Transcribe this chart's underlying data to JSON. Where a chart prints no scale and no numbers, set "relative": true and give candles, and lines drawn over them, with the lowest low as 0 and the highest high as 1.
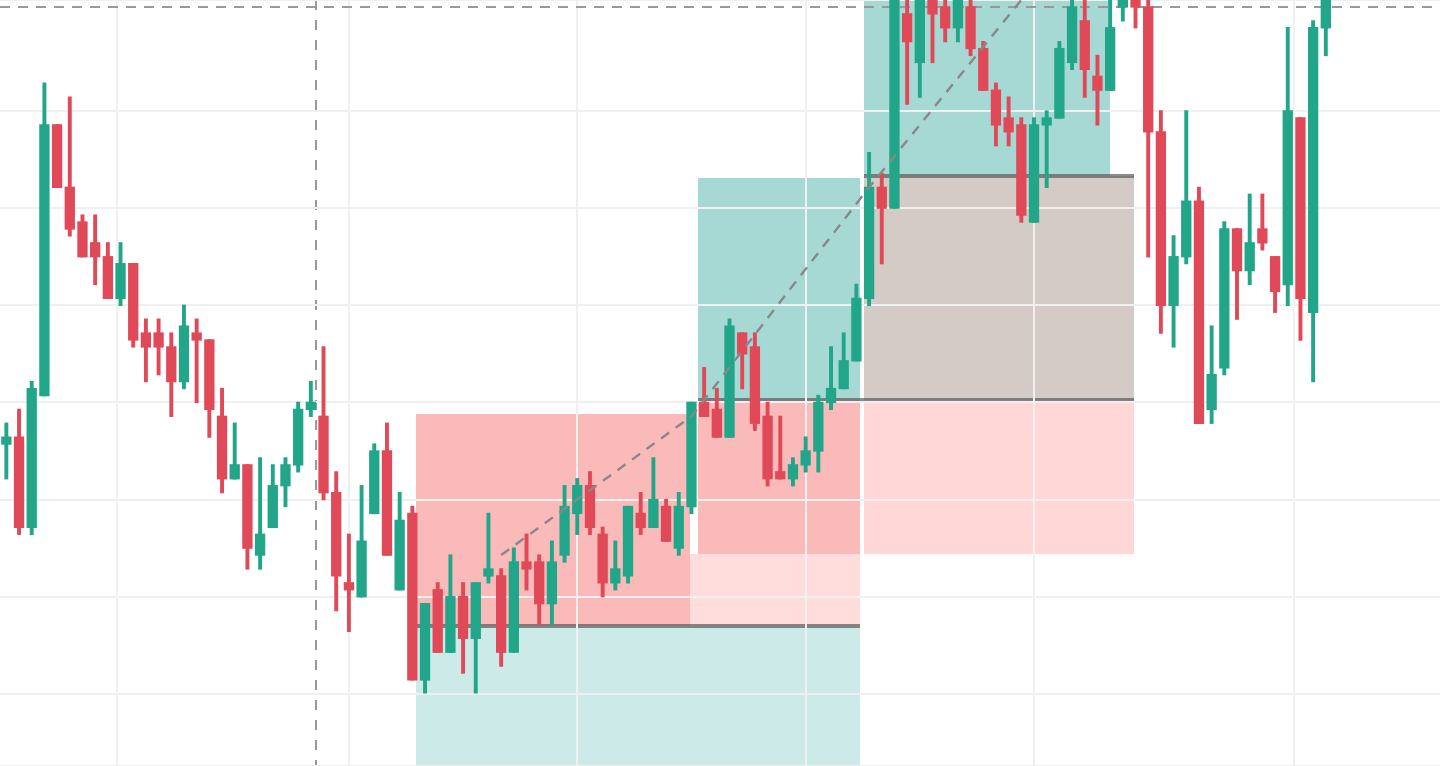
{
  "chart_data": {
    "type": "candlestick",
    "relative": true,
    "grid": true,
    "ref_lines": [
      {
        "axis": "y",
        "value": 0.99,
        "color": "#999999",
        "line_style": "dashed"
      }
    ],
    "series": [
      {
        "type": "line",
        "color": "#888888",
        "line_style": "dashed",
        "values": [
          null,
          null,
          null,
          null,
          null,
          null,
          null,
          null,
          null,
          null,
          null,
          null,
          null,
          null,
          null,
          null,
          null,
          null,
          null,
          null,
          null,
          null,
          null,
          null,
          null,
          null,
          null,
          null,
          null,
          null,
          null,
          null,
          null,
          null,
          null,
          null,
          null,
          null,
          null,
          0.2,
          null,
          null,
          null,
          null,
          null,
          null,
          null,
          null,
          null,
          null,
          null,
          null,
          null,
          null,
          0.4,
          null,
          null,
          null,
          null,
          null,
          null,
          null,
          null,
          null,
          null,
          null,
          null,
          null,
          0.73,
          null,
          null,
          null,
          null,
          null,
          null,
          null,
          null,
          null,
          null,
          null,
          1.0,
          null,
          null,
          null,
          null,
          null,
          null,
          null,
          null,
          null,
          null,
          null,
          null,
          null,
          null,
          null,
          null,
          null,
          null,
          null,
          null,
          null,
          null,
          null,
          null
        ]
      }
    ],
    "categories": [
      null,
      null,
      null,
      null,
      null,
      null,
      null,
      null,
      null,
      null,
      null,
      null,
      null,
      null,
      null,
      null,
      null,
      null,
      null,
      null,
      null,
      null,
      null,
      null,
      null,
      null,
      null,
      null,
      null,
      null,
      null,
      null,
      null,
      null,
      null,
      null,
      null,
      null,
      null,
      null,
      null,
      null,
      null,
      null,
      null,
      null,
      null,
      null,
      null,
      null,
      null,
      null,
      null,
      null,
      null,
      null,
      null,
      null,
      null,
      null,
      null,
      null,
      null,
      null,
      null,
      null,
      null,
      null,
      null,
      null,
      null,
      null,
      null,
      null,
      null,
      null,
      null,
      null,
      null,
      null,
      null,
      null,
      null,
      null,
      null,
      null,
      null,
      null,
      null,
      null,
      null,
      null,
      null,
      null,
      null,
      null,
      null,
      null,
      null,
      null,
      null,
      null,
      null,
      null,
      null
    ],
    "ohlc": [
      [
        0.36,
        0.39,
        0.31,
        0.37
      ],
      [
        0.37,
        0.41,
        0.23,
        0.24
      ],
      [
        0.24,
        0.45,
        0.23,
        0.44
      ],
      [
        0.43,
        0.88,
        0.43,
        0.82
      ],
      [
        0.82,
        0.82,
        0.73,
        0.73
      ],
      [
        0.73,
        0.86,
        0.66,
        0.67
      ],
      [
        0.68,
        0.69,
        0.63,
        0.63
      ],
      [
        0.65,
        0.69,
        0.59,
        0.63
      ],
      [
        0.63,
        0.65,
        0.57,
        0.57
      ],
      [
        0.57,
        0.65,
        0.56,
        0.62
      ],
      [
        0.62,
        0.62,
        0.5,
        0.51
      ],
      [
        0.52,
        0.54,
        0.45,
        0.5
      ],
      [
        0.52,
        0.54,
        0.46,
        0.5
      ],
      [
        0.5,
        0.52,
        0.4,
        0.45
      ],
      [
        0.45,
        0.56,
        0.44,
        0.53
      ],
      [
        0.52,
        0.54,
        0.42,
        0.51
      ],
      [
        0.51,
        0.51,
        0.37,
        0.41
      ],
      [
        0.4,
        0.44,
        0.29,
        0.31
      ],
      [
        0.31,
        0.39,
        0.31,
        0.33
      ],
      [
        0.33,
        0.33,
        0.18,
        0.21
      ],
      [
        0.2,
        0.34,
        0.18,
        0.23
      ],
      [
        0.24,
        0.33,
        0.24,
        0.3
      ],
      [
        0.3,
        0.34,
        0.27,
        0.33
      ],
      [
        0.33,
        0.42,
        0.32,
        0.41
      ],
      [
        0.41,
        0.45,
        0.4,
        0.42
      ],
      [
        0.4,
        0.5,
        0.28,
        0.29
      ],
      [
        0.29,
        0.32,
        0.12,
        0.17
      ],
      [
        0.16,
        0.23,
        0.09,
        0.15
      ],
      [
        0.14,
        0.3,
        0.14,
        0.22
      ],
      [
        0.26,
        0.36,
        0.26,
        0.35
      ],
      [
        0.35,
        0.39,
        0.2,
        0.2
      ],
      [
        0.15,
        0.29,
        0.15,
        0.25
      ],
      [
        0.26,
        0.27,
        0.02,
        0.02
      ],
      [
        0.02,
        0.13,
        0.0,
        0.13
      ],
      [
        0.15,
        0.16,
        0.06,
        0.06
      ],
      [
        0.06,
        0.2,
        0.06,
        0.14
      ],
      [
        0.14,
        0.16,
        0.03,
        0.08
      ],
      [
        0.08,
        0.16,
        0.0,
        0.16
      ],
      [
        0.17,
        0.26,
        0.16,
        0.18
      ],
      [
        0.17,
        0.18,
        0.04,
        0.06
      ],
      [
        0.06,
        0.21,
        0.06,
        0.19
      ],
      [
        0.19,
        0.23,
        0.15,
        0.18
      ],
      [
        0.19,
        0.2,
        0.1,
        0.13
      ],
      [
        0.13,
        0.22,
        0.1,
        0.19
      ],
      [
        0.2,
        0.3,
        0.19,
        0.27
      ],
      [
        0.26,
        0.31,
        0.23,
        0.3
      ],
      [
        0.3,
        0.32,
        0.23,
        0.24
      ],
      [
        0.23,
        0.24,
        0.14,
        0.16
      ],
      [
        0.16,
        0.22,
        0.15,
        0.18
      ],
      [
        0.17,
        0.27,
        0.16,
        0.27
      ],
      [
        0.26,
        0.29,
        0.23,
        0.24
      ],
      [
        0.24,
        0.34,
        0.24,
        0.28
      ],
      [
        0.27,
        0.28,
        0.22,
        0.22
      ],
      [
        0.21,
        0.29,
        0.2,
        0.27
      ],
      [
        0.27,
        0.42,
        0.26,
        0.42
      ],
      [
        0.42,
        0.47,
        0.4,
        0.4
      ],
      [
        0.41,
        0.44,
        0.37,
        0.37
      ],
      [
        0.37,
        0.54,
        0.37,
        0.53
      ],
      [
        0.52,
        0.52,
        0.44,
        0.49
      ],
      [
        0.5,
        0.52,
        0.38,
        0.39
      ],
      [
        0.4,
        0.42,
        0.3,
        0.31
      ],
      [
        0.32,
        0.4,
        0.31,
        0.31
      ],
      [
        0.31,
        0.34,
        0.3,
        0.33
      ],
      [
        0.33,
        0.37,
        0.32,
        0.35
      ],
      [
        0.35,
        0.43,
        0.32,
        0.42
      ],
      [
        0.42,
        0.5,
        0.41,
        0.44
      ],
      [
        0.44,
        0.52,
        0.44,
        0.48
      ],
      [
        0.48,
        0.59,
        0.48,
        0.57
      ],
      [
        0.57,
        0.78,
        0.56,
        0.73
      ],
      [
        0.73,
        0.75,
        0.62,
        0.7
      ],
      [
        0.7,
        1.0,
        0.7,
        1.0
      ],
      [
        0.98,
        1.0,
        0.85,
        0.94
      ],
      [
        0.91,
        1.0,
        0.86,
        1.0
      ],
      [
        1.0,
        1.0,
        0.91,
        0.98
      ],
      [
        0.99,
        1.0,
        0.94,
        0.96
      ],
      [
        0.96,
        1.0,
        0.94,
        1.0
      ],
      [
        0.99,
        1.0,
        0.92,
        0.93
      ],
      [
        0.93,
        0.94,
        0.87,
        0.87
      ],
      [
        0.87,
        0.88,
        0.79,
        0.82
      ],
      [
        0.83,
        0.86,
        0.79,
        0.81
      ],
      [
        0.82,
        0.83,
        0.68,
        0.69
      ],
      [
        0.68,
        0.83,
        0.68,
        0.82
      ],
      [
        0.82,
        0.84,
        0.73,
        0.83
      ],
      [
        0.83,
        0.94,
        0.83,
        0.93
      ],
      [
        0.91,
        1.0,
        0.9,
        0.99
      ],
      [
        0.97,
        1.0,
        0.86,
        0.9
      ],
      [
        0.89,
        0.92,
        0.82,
        0.87
      ],
      [
        0.87,
        1.0,
        0.87,
        0.96
      ],
      [
        0.99,
        1.0,
        0.97,
        1.0
      ],
      [
        1.0,
        1.0,
        0.96,
        0.99
      ],
      [
        0.99,
        1.0,
        0.63,
        0.81
      ],
      [
        0.81,
        0.84,
        0.52,
        0.56
      ],
      [
        0.56,
        0.66,
        0.5,
        0.63
      ],
      [
        0.63,
        0.84,
        0.62,
        0.71
      ],
      [
        0.71,
        0.73,
        0.39,
        0.39
      ],
      [
        0.41,
        0.53,
        0.39,
        0.46
      ],
      [
        0.47,
        0.68,
        0.46,
        0.67
      ],
      [
        0.67,
        0.67,
        0.54,
        0.61
      ],
      [
        0.61,
        0.72,
        0.59,
        0.65
      ],
      [
        0.67,
        0.72,
        0.64,
        0.65
      ],
      [
        0.63,
        0.63,
        0.55,
        0.58
      ],
      [
        0.59,
        0.96,
        0.56,
        0.84
      ],
      [
        0.83,
        0.83,
        0.51,
        0.57
      ],
      [
        0.55,
        0.97,
        0.45,
        0.96
      ],
      [
        0.96,
        1.0,
        0.92,
        1.0
      ]
    ]
  }
}
